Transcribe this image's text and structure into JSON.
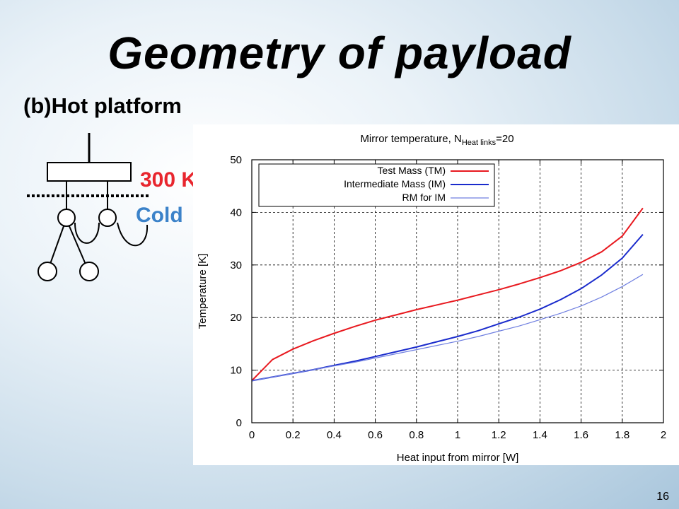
{
  "slide": {
    "title": "Geometry of payload",
    "subtitle": "(b)Hot platform",
    "label_300k": "300 K",
    "label_cold": "Cold",
    "page_number": "16"
  },
  "colors": {
    "hot_label": "#e8262e",
    "cold_label": "#3b82c9",
    "tm_series": "#e8191f",
    "im_series": "#1a2bcc",
    "rm_series": "#6f7fe0"
  },
  "chart_data": {
    "type": "line",
    "title_main": "Mirror temperature, N",
    "title_sub": "Heat links",
    "title_tail": "=20",
    "xlabel": "Heat input from mirror [W]",
    "ylabel": "Temperature [K]",
    "xlim": [
      0,
      2
    ],
    "ylim": [
      0,
      50
    ],
    "xticks": [
      "0",
      "0.2",
      "0.4",
      "0.6",
      "0.8",
      "1",
      "1.2",
      "1.4",
      "1.6",
      "1.8",
      "2"
    ],
    "yticks": [
      "0",
      "10",
      "20",
      "30",
      "40",
      "50"
    ],
    "grid": true,
    "legend_position": "top-left",
    "series": [
      {
        "name": "Test Mass (TM)",
        "x": [
          0,
          0.1,
          0.2,
          0.3,
          0.4,
          0.5,
          0.6,
          0.7,
          0.8,
          0.9,
          1.0,
          1.1,
          1.2,
          1.3,
          1.4,
          1.5,
          1.6,
          1.7,
          1.8,
          1.9
        ],
        "y": [
          8,
          12,
          14,
          15.6,
          17,
          18.3,
          19.5,
          20.5,
          21.5,
          22.4,
          23.3,
          24.3,
          25.3,
          26.4,
          27.6,
          28.9,
          30.5,
          32.5,
          35.5,
          40.8
        ]
      },
      {
        "name": "Intermediate Mass (IM)",
        "x": [
          0,
          0.1,
          0.2,
          0.3,
          0.4,
          0.5,
          0.6,
          0.7,
          0.8,
          0.9,
          1.0,
          1.1,
          1.2,
          1.3,
          1.4,
          1.5,
          1.6,
          1.7,
          1.8,
          1.9
        ],
        "y": [
          8,
          8.7,
          9.4,
          10.1,
          10.9,
          11.7,
          12.6,
          13.5,
          14.4,
          15.4,
          16.4,
          17.5,
          18.8,
          20.1,
          21.6,
          23.4,
          25.5,
          28.1,
          31.3,
          35.8
        ]
      },
      {
        "name": "RM for IM",
        "x": [
          0,
          0.1,
          0.2,
          0.3,
          0.4,
          0.5,
          0.6,
          0.7,
          0.8,
          0.9,
          1.0,
          1.1,
          1.2,
          1.3,
          1.4,
          1.5,
          1.6,
          1.7,
          1.8,
          1.9
        ],
        "y": [
          8,
          8.7,
          9.4,
          10.1,
          10.8,
          11.5,
          12.3,
          13.1,
          13.9,
          14.7,
          15.5,
          16.4,
          17.4,
          18.4,
          19.6,
          20.8,
          22.2,
          23.9,
          25.9,
          28.2
        ]
      }
    ]
  }
}
